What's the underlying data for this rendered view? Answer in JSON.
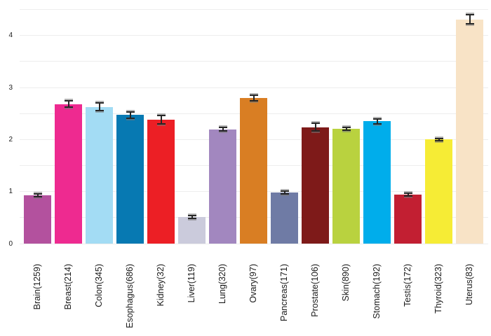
{
  "chart_data": {
    "type": "bar",
    "title": "",
    "xlabel": "",
    "ylabel": "",
    "categories": [
      "Brain",
      "Breast",
      "Colon",
      "Esophagus",
      "Kidney",
      "Liver",
      "Lung",
      "Ovary",
      "Pancreas",
      "Prostate",
      "Skin",
      "Stomach",
      "Testis",
      "Thyroid",
      "Uterus"
    ],
    "sample_counts": [
      1259,
      214,
      345,
      686,
      32,
      119,
      320,
      97,
      171,
      106,
      890,
      192,
      172,
      323,
      83
    ],
    "tick_labels": [
      "Brain(1259)",
      "Breast(214)",
      "Colon(345)",
      "Esophagus(686)",
      "Kidney(32)",
      "Liver(119)",
      "Lung(320)",
      "Ovary(97)",
      "Pancreas(171)",
      "Prostate(106)",
      "Skin(890)",
      "Stomach(192)",
      "Testis(172)",
      "Thyroid(323)",
      "Uterus(83)"
    ],
    "values": [
      0.93,
      2.68,
      2.63,
      2.47,
      2.38,
      0.51,
      2.2,
      2.8,
      0.98,
      2.24,
      2.21,
      2.35,
      0.94,
      2.0,
      4.31
    ],
    "errors": [
      0.03,
      0.06,
      0.07,
      0.06,
      0.08,
      0.03,
      0.03,
      0.05,
      0.03,
      0.07,
      0.03,
      0.05,
      0.03,
      0.02,
      0.09
    ],
    "bar_colors": [
      "#B3519E",
      "#EE2A90",
      "#A3DCF4",
      "#0779B2",
      "#EC1F25",
      "#CBCBDC",
      "#A287BF",
      "#D97E23",
      "#6F7BA5",
      "#7E1A19",
      "#B9D23F",
      "#00ADEB",
      "#C21F32",
      "#F6EC35",
      "#F8E3C6"
    ],
    "yticks": [
      "0",
      "1",
      "2",
      "3",
      "4"
    ],
    "ylim": [
      0,
      4.5
    ],
    "grid": true,
    "gridline_step": 0.5,
    "legend_position": "none",
    "error_bar_color": "#262626"
  },
  "colors": {
    "background": "#ffffff",
    "gridline": "#ededed",
    "tick_label_color": "#1a1a1a"
  }
}
